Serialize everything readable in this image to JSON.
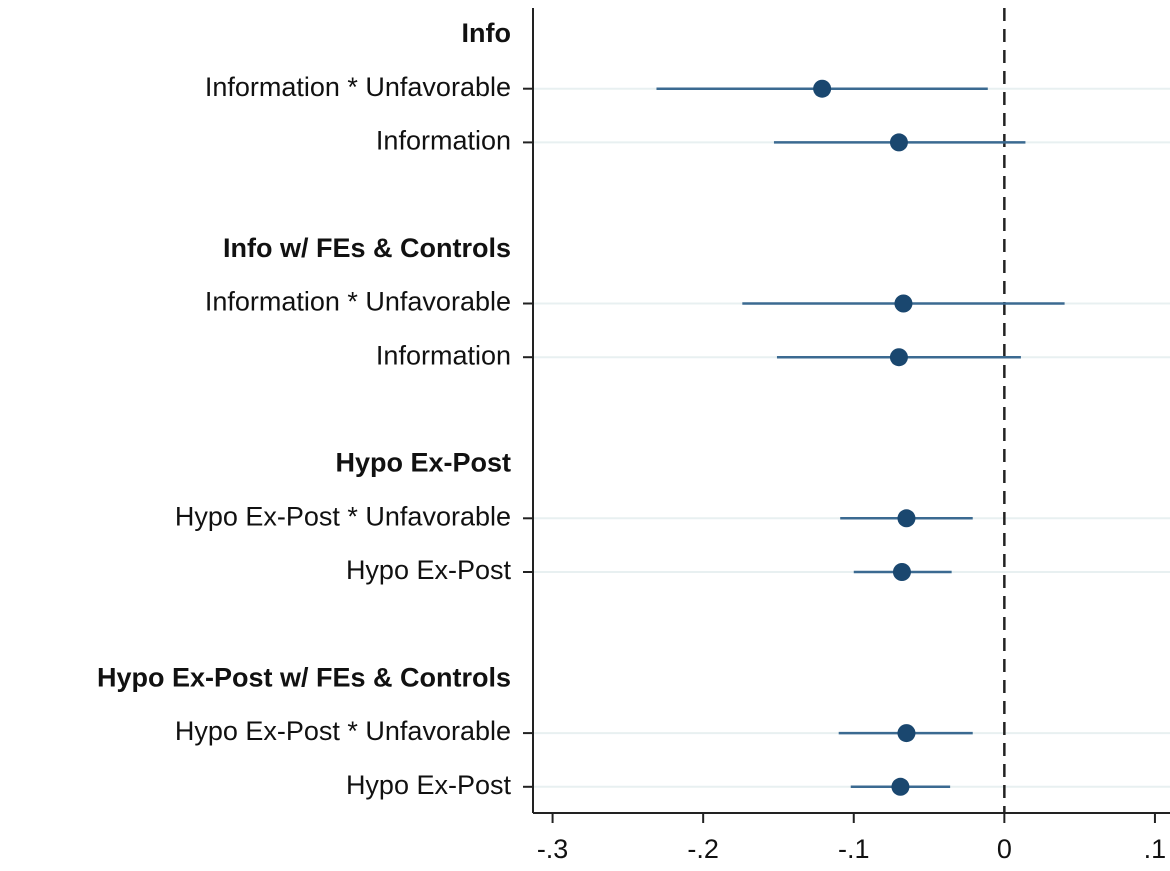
{
  "chart_data": {
    "type": "coefplot",
    "xlim": [
      -0.313,
      0.11
    ],
    "xticks": [
      {
        "value": -0.3,
        "label": "-.3"
      },
      {
        "value": -0.2,
        "label": "-.2"
      },
      {
        "value": -0.1,
        "label": "-.1"
      },
      0,
      {
        "value": 0.1,
        "label": ".1"
      }
    ],
    "xline": 0,
    "grid": true,
    "color": "#1a476f",
    "ci_color": "#3b6a91",
    "groups": [
      {
        "title": "Info",
        "categories": [
          "Information * Unfavorable",
          "Information"
        ],
        "values": [
          -0.121,
          -0.07
        ],
        "lower": [
          -0.231,
          -0.153
        ],
        "upper": [
          -0.011,
          0.014
        ]
      },
      {
        "title": "Info w/ FEs & Controls",
        "categories": [
          "Information * Unfavorable",
          "Information"
        ],
        "values": [
          -0.067,
          -0.07
        ],
        "lower": [
          -0.174,
          -0.151
        ],
        "upper": [
          0.04,
          0.011
        ]
      },
      {
        "title": "Hypo Ex-Post",
        "categories": [
          "Hypo Ex-Post * Unfavorable",
          "Hypo Ex-Post"
        ],
        "values": [
          -0.065,
          -0.068
        ],
        "lower": [
          -0.109,
          -0.1
        ],
        "upper": [
          -0.021,
          -0.035
        ]
      },
      {
        "title": "Hypo Ex-Post w/ FEs & Controls",
        "categories": [
          "Hypo Ex-Post * Unfavorable",
          "Hypo Ex-Post"
        ],
        "values": [
          -0.065,
          -0.069
        ],
        "lower": [
          -0.11,
          -0.102
        ],
        "upper": [
          -0.021,
          -0.036
        ]
      }
    ]
  }
}
